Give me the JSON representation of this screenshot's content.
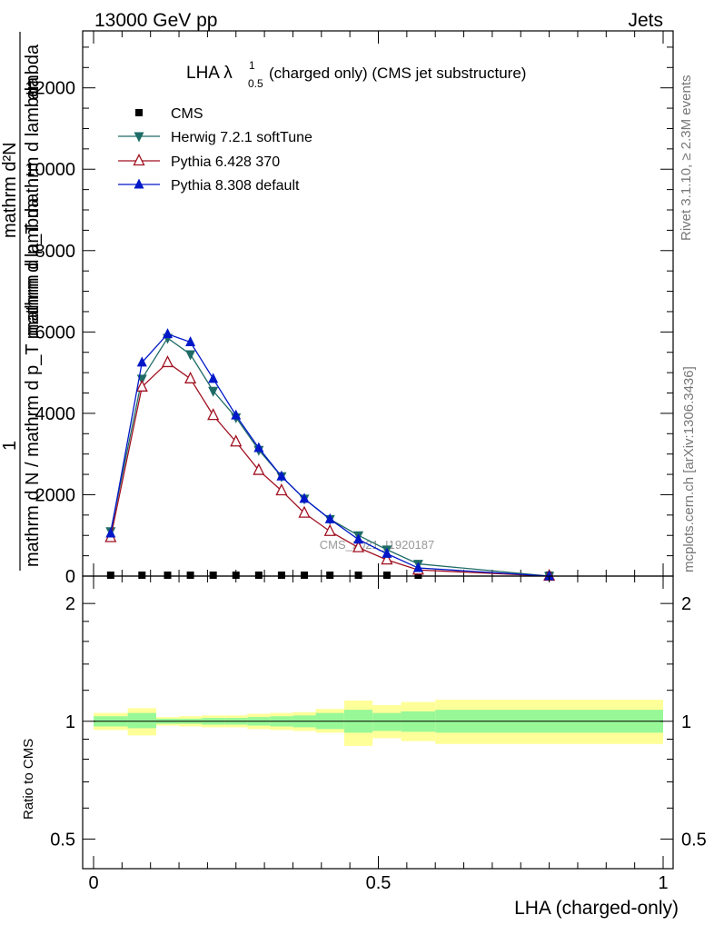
{
  "header": {
    "left": "13000 GeV pp",
    "right": "Jets"
  },
  "side_labels": {
    "rivet": "Rivet 3.1.10, ≥ 2.3M events",
    "mcplots": "mcplots.cern.ch [arXiv:1306.3436]"
  },
  "colors": {
    "cms": "#000000",
    "herwig": "#1f6b66",
    "pythia6": "#a01020",
    "pythia8": "#0018c8",
    "band_inner": "#98f898",
    "band_outer": "#ffff99"
  },
  "chart_data": [
    {
      "type": "line",
      "title": "LHA λ¹₀.₅ (charged only) (CMS jet substructure)",
      "title_main": "LHA λ",
      "title_sup": "1",
      "title_sub": "0.5",
      "title_rest": " (charged only) (CMS jet substructure)",
      "watermark": "CMS_2021_I1920187",
      "ylabel_top": "1",
      "ylabel_num": "mathrm d²N",
      "ylabel_den": "mathrm d p_T mathrm d lambda",
      "ylabel_full": "mathrm d N / mathrm d p_T mathrm d lambda",
      "ylabel_extra": "mathrm d p_T mathrm d lambda",
      "xlim": [
        -0.02,
        1.02
      ],
      "ylim": [
        0,
        13400
      ],
      "yticks": [
        0,
        2000,
        4000,
        6000,
        8000,
        10000,
        12000
      ],
      "ytick_labels": [
        "0",
        "2000",
        "4000",
        "6000",
        "8000",
        "10000",
        "12000"
      ],
      "legend_position": "top-left",
      "x": [
        0.03,
        0.085,
        0.13,
        0.17,
        0.21,
        0.25,
        0.29,
        0.33,
        0.37,
        0.415,
        0.465,
        0.515,
        0.57,
        0.8
      ],
      "series": [
        {
          "name": "CMS",
          "marker": "square",
          "values": [
            0,
            0,
            0,
            0,
            0,
            0,
            0,
            0,
            0,
            0,
            0,
            0,
            0,
            0
          ]
        },
        {
          "name": "Herwig 7.2.1 softTune",
          "marker": "triangle-down",
          "values": [
            1100,
            4850,
            5850,
            5450,
            4550,
            3900,
            3100,
            2450,
            1900,
            1400,
            1000,
            650,
            300,
            0
          ]
        },
        {
          "name": "Pythia 6.428 370",
          "marker": "triangle-up-open",
          "values": [
            950,
            4650,
            5250,
            4850,
            3950,
            3300,
            2600,
            2100,
            1550,
            1100,
            700,
            400,
            150,
            0
          ]
        },
        {
          "name": "Pythia 8.308 default",
          "marker": "triangle-up",
          "values": [
            1050,
            5250,
            5950,
            5750,
            4850,
            3950,
            3150,
            2450,
            1900,
            1400,
            900,
            550,
            200,
            0
          ]
        }
      ]
    },
    {
      "type": "area",
      "ylabel": "Ratio to CMS",
      "xlabel": "LHA (charged-only)",
      "scale": "log",
      "ylim": [
        0.42,
        2.35
      ],
      "yticks": [
        0.5,
        1,
        2
      ],
      "ytick_labels": [
        "0.5",
        "1",
        "2"
      ],
      "xticks": [
        0,
        0.5,
        1
      ],
      "xtick_labels": [
        "0",
        "0.5",
        "1"
      ],
      "bins": [
        {
          "x0": 0.0,
          "x1": 0.06,
          "inner": [
            0.97,
            1.03
          ],
          "outer": [
            0.95,
            1.05
          ]
        },
        {
          "x0": 0.06,
          "x1": 0.11,
          "inner": [
            0.96,
            1.05
          ],
          "outer": [
            0.92,
            1.08
          ]
        },
        {
          "x0": 0.11,
          "x1": 0.15,
          "inner": [
            0.985,
            1.015
          ],
          "outer": [
            0.975,
            1.025
          ]
        },
        {
          "x0": 0.15,
          "x1": 0.19,
          "inner": [
            0.985,
            1.015
          ],
          "outer": [
            0.97,
            1.03
          ]
        },
        {
          "x0": 0.19,
          "x1": 0.23,
          "inner": [
            0.98,
            1.02
          ],
          "outer": [
            0.965,
            1.035
          ]
        },
        {
          "x0": 0.23,
          "x1": 0.27,
          "inner": [
            0.98,
            1.02
          ],
          "outer": [
            0.965,
            1.035
          ]
        },
        {
          "x0": 0.27,
          "x1": 0.31,
          "inner": [
            0.975,
            1.025
          ],
          "outer": [
            0.955,
            1.045
          ]
        },
        {
          "x0": 0.31,
          "x1": 0.35,
          "inner": [
            0.97,
            1.03
          ],
          "outer": [
            0.95,
            1.05
          ]
        },
        {
          "x0": 0.35,
          "x1": 0.39,
          "inner": [
            0.965,
            1.035
          ],
          "outer": [
            0.945,
            1.055
          ]
        },
        {
          "x0": 0.39,
          "x1": 0.44,
          "inner": [
            0.955,
            1.05
          ],
          "outer": [
            0.935,
            1.075
          ]
        },
        {
          "x0": 0.44,
          "x1": 0.49,
          "inner": [
            0.935,
            1.07
          ],
          "outer": [
            0.865,
            1.13
          ]
        },
        {
          "x0": 0.49,
          "x1": 0.54,
          "inner": [
            0.945,
            1.05
          ],
          "outer": [
            0.905,
            1.1
          ]
        },
        {
          "x0": 0.54,
          "x1": 0.6,
          "inner": [
            0.94,
            1.06
          ],
          "outer": [
            0.89,
            1.12
          ]
        },
        {
          "x0": 0.6,
          "x1": 1.0,
          "inner": [
            0.935,
            1.07
          ],
          "outer": [
            0.875,
            1.135
          ]
        }
      ]
    }
  ]
}
